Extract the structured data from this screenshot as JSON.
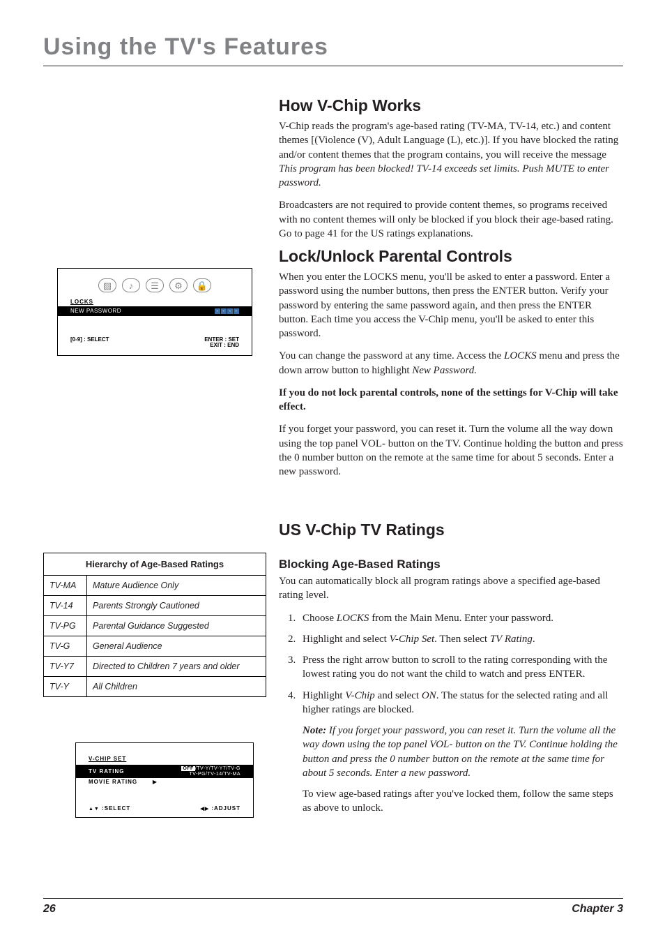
{
  "chapter_title": "Using the TV's Features",
  "sec1": {
    "h": "How V-Chip Works",
    "p1a": "V-Chip reads the program's age-based rating (TV-MA, TV-14, etc.) and content themes [(Violence (V), Adult Language (L), etc.)]. If you have blocked the rating and/or content themes that the program contains, you will receive the message ",
    "p1i": "This program has been blocked! TV-14 exceeds set limits. Push MUTE to enter password.",
    "p2": "Broadcasters are not required to provide content themes, so programs received with no content themes will only be blocked if you block their age-based rating. Go to page 41 for the US ratings explanations."
  },
  "sec2": {
    "h": "Lock/Unlock Parental Controls",
    "p1": "When you enter the LOCKS menu, you'll be asked to enter a password. Enter a password using the number buttons, then press the ENTER button. Verify your password by entering the same password again, and then press the ENTER button. Each time you access the V-Chip menu, you'll be asked to enter this password.",
    "p2a": "You can change the password at any time. Access the ",
    "p2i1": "LOCKS",
    "p2b": " menu and press the down arrow button to highlight ",
    "p2i2": "New Password.",
    "p3": "If you do not lock parental controls, none of the settings for V-Chip will take effect.",
    "p4": "If you forget your password, you can reset it. Turn the volume all the way down using the top panel VOL- button on the TV. Continue holding the button and press the 0 number button on the remote at the same time for about 5 seconds. Enter a new password."
  },
  "sec3": {
    "h": "US V-Chip TV Ratings",
    "sub": "Blocking Age-Based Ratings",
    "p1": "You can automatically block all program ratings above a specified age-based rating level.",
    "s1a": "Choose ",
    "s1i": "LOCKS",
    "s1b": " from the Main Menu. Enter your password.",
    "s2a": "Highlight and select ",
    "s2i1": "V-Chip Set",
    "s2b": ". Then select ",
    "s2i2": "TV Rating",
    "s2c": ".",
    "s3": "Press the right arrow button to scroll to the rating corresponding with the lowest rating you do not want the child to watch and press ENTER.",
    "s4a": "Highlight ",
    "s4i1": "V-Chip",
    "s4b": " and select ",
    "s4i2": "ON",
    "s4c": ". The status for the selected rating and all higher ratings are blocked.",
    "note_label": "Note:",
    "note": " If you forget your password, you can reset it. Turn the volume all the way down using the top panel VOL- button on the TV. Continue holding the button and press the 0 number button on the remote at the same time for about 5 seconds. Enter a new password.",
    "follow": "To view age-based ratings after you've locked them, follow the same steps as above to unlock."
  },
  "osd1": {
    "title": "LOCKS",
    "row_label": "NEW PASSWORD",
    "dash": "-",
    "footer_left": "[0-9] : SELECT",
    "footer_r1": "ENTER : SET",
    "footer_r2": "EXIT : END"
  },
  "ratings_table": {
    "caption": "Hierarchy of Age-Based Ratings",
    "rows": [
      [
        "TV-MA",
        "Mature Audience Only"
      ],
      [
        "TV-14",
        "Parents Strongly Cautioned"
      ],
      [
        "TV-PG",
        "Parental Guidance Suggested"
      ],
      [
        "TV-G",
        "General Audience"
      ],
      [
        "TV-Y7",
        "Directed to Children 7 years and older"
      ],
      [
        "TV-Y",
        "All Children"
      ]
    ]
  },
  "osd2": {
    "title": "V-CHIP SET",
    "tv_rating": "TV RATING",
    "movie_rating": "MOVIE RATING",
    "off": "OFF",
    "line1_rest": "/TV-Y/TV-Y7/TV-G",
    "line2": "TV-PG/TV-14/TV-MA",
    "tri": "▶",
    "footer_sel": ":SELECT",
    "footer_adj": ":ADJUST",
    "updown": "▲▼",
    "leftright": "◀▶"
  },
  "footer": {
    "page": "26",
    "chapter": "Chapter 3"
  },
  "colors": {
    "title_gray": "#808285",
    "text": "#231f20",
    "dash_blue": "#3a6ea5"
  }
}
